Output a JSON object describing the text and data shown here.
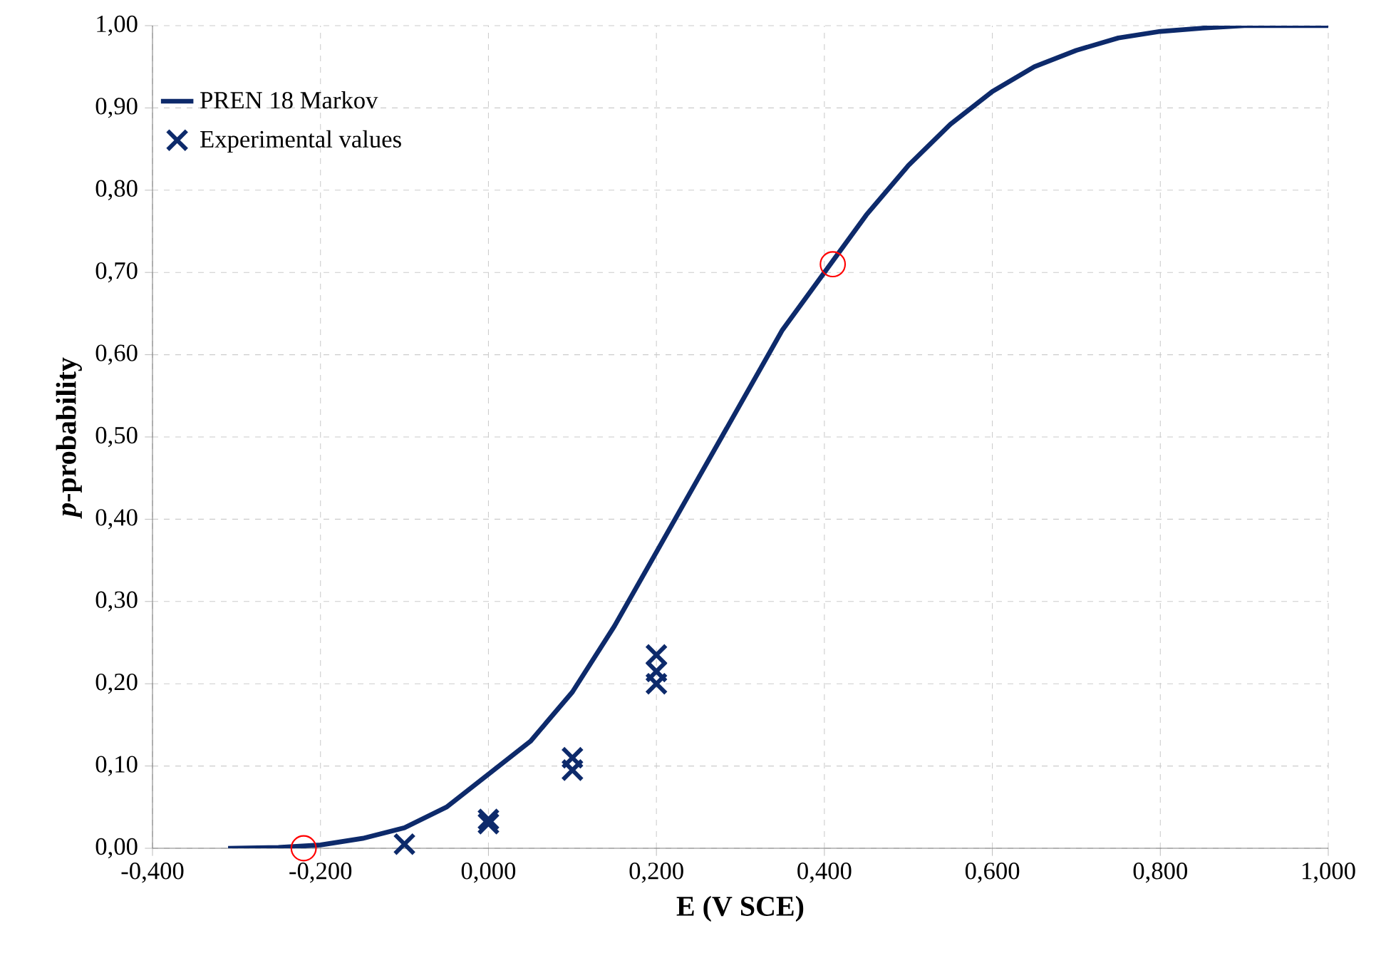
{
  "chart_data": {
    "type": "line",
    "xlabel": "E (V SCE)",
    "ylabel": "*p*-probability",
    "xlim": [
      -0.4,
      1.0
    ],
    "ylim": [
      0,
      1.0
    ],
    "xticks": [
      {
        "value": -0.4,
        "label": "-0,400"
      },
      {
        "value": -0.2,
        "label": "-0,200"
      },
      {
        "value": 0,
        "label": "0,000"
      },
      {
        "value": 0.2,
        "label": "0,200"
      },
      {
        "value": 0.4,
        "label": "0,400"
      },
      {
        "value": 0.6,
        "label": "0,600"
      },
      {
        "value": 0.8,
        "label": "0,800"
      },
      {
        "value": 1.0,
        "label": "1,000"
      }
    ],
    "yticks": [
      {
        "value": 0,
        "label": "0,00"
      },
      {
        "value": 0.1,
        "label": "0,10"
      },
      {
        "value": 0.2,
        "label": "0,20"
      },
      {
        "value": 0.3,
        "label": "0,30"
      },
      {
        "value": 0.4,
        "label": "0,40"
      },
      {
        "value": 0.5,
        "label": "0,50"
      },
      {
        "value": 0.6,
        "label": "0,60"
      },
      {
        "value": 0.7,
        "label": "0,70"
      },
      {
        "value": 0.8,
        "label": "0,80"
      },
      {
        "value": 0.9,
        "label": "0,90"
      },
      {
        "value": 1.0,
        "label": "1,00"
      }
    ],
    "grid": true,
    "legend": "top left",
    "series": [
      {
        "name": "PREN 18 Markov",
        "color": "#0d2a6b",
        "marker": "none",
        "line_style": "solid",
        "x": [
          -0.31,
          -0.25,
          -0.2,
          -0.15,
          -0.1,
          -0.05,
          0,
          0.05,
          0.1,
          0.15,
          0.2,
          0.25,
          0.3,
          0.35,
          0.4,
          0.45,
          0.5,
          0.55,
          0.6,
          0.65,
          0.7,
          0.75,
          0.8,
          0.85,
          0.9,
          1.0
        ],
        "values": [
          0,
          0.001,
          0.004,
          0.012,
          0.025,
          0.05,
          0.09,
          0.13,
          0.19,
          0.27,
          0.36,
          0.45,
          0.54,
          0.63,
          0.7,
          0.77,
          0.83,
          0.88,
          0.92,
          0.95,
          0.97,
          0.985,
          0.993,
          0.997,
          1.0,
          1.0
        ]
      },
      {
        "name": "Experimental values",
        "type": "scatter",
        "color": "#0d2a6b",
        "marker": "cross",
        "x": [
          -0.1,
          0,
          0,
          0.1,
          0.1,
          0.2,
          0.2,
          0.2
        ],
        "values": [
          0.005,
          0.03,
          0.035,
          0.095,
          0.11,
          0.2,
          0.215,
          0.235
        ]
      },
      {
        "type": "scatter",
        "color": "#ff0000",
        "marker": "circle",
        "x": [
          -0.22,
          0.41
        ],
        "values": [
          0.0,
          0.71
        ]
      }
    ]
  }
}
